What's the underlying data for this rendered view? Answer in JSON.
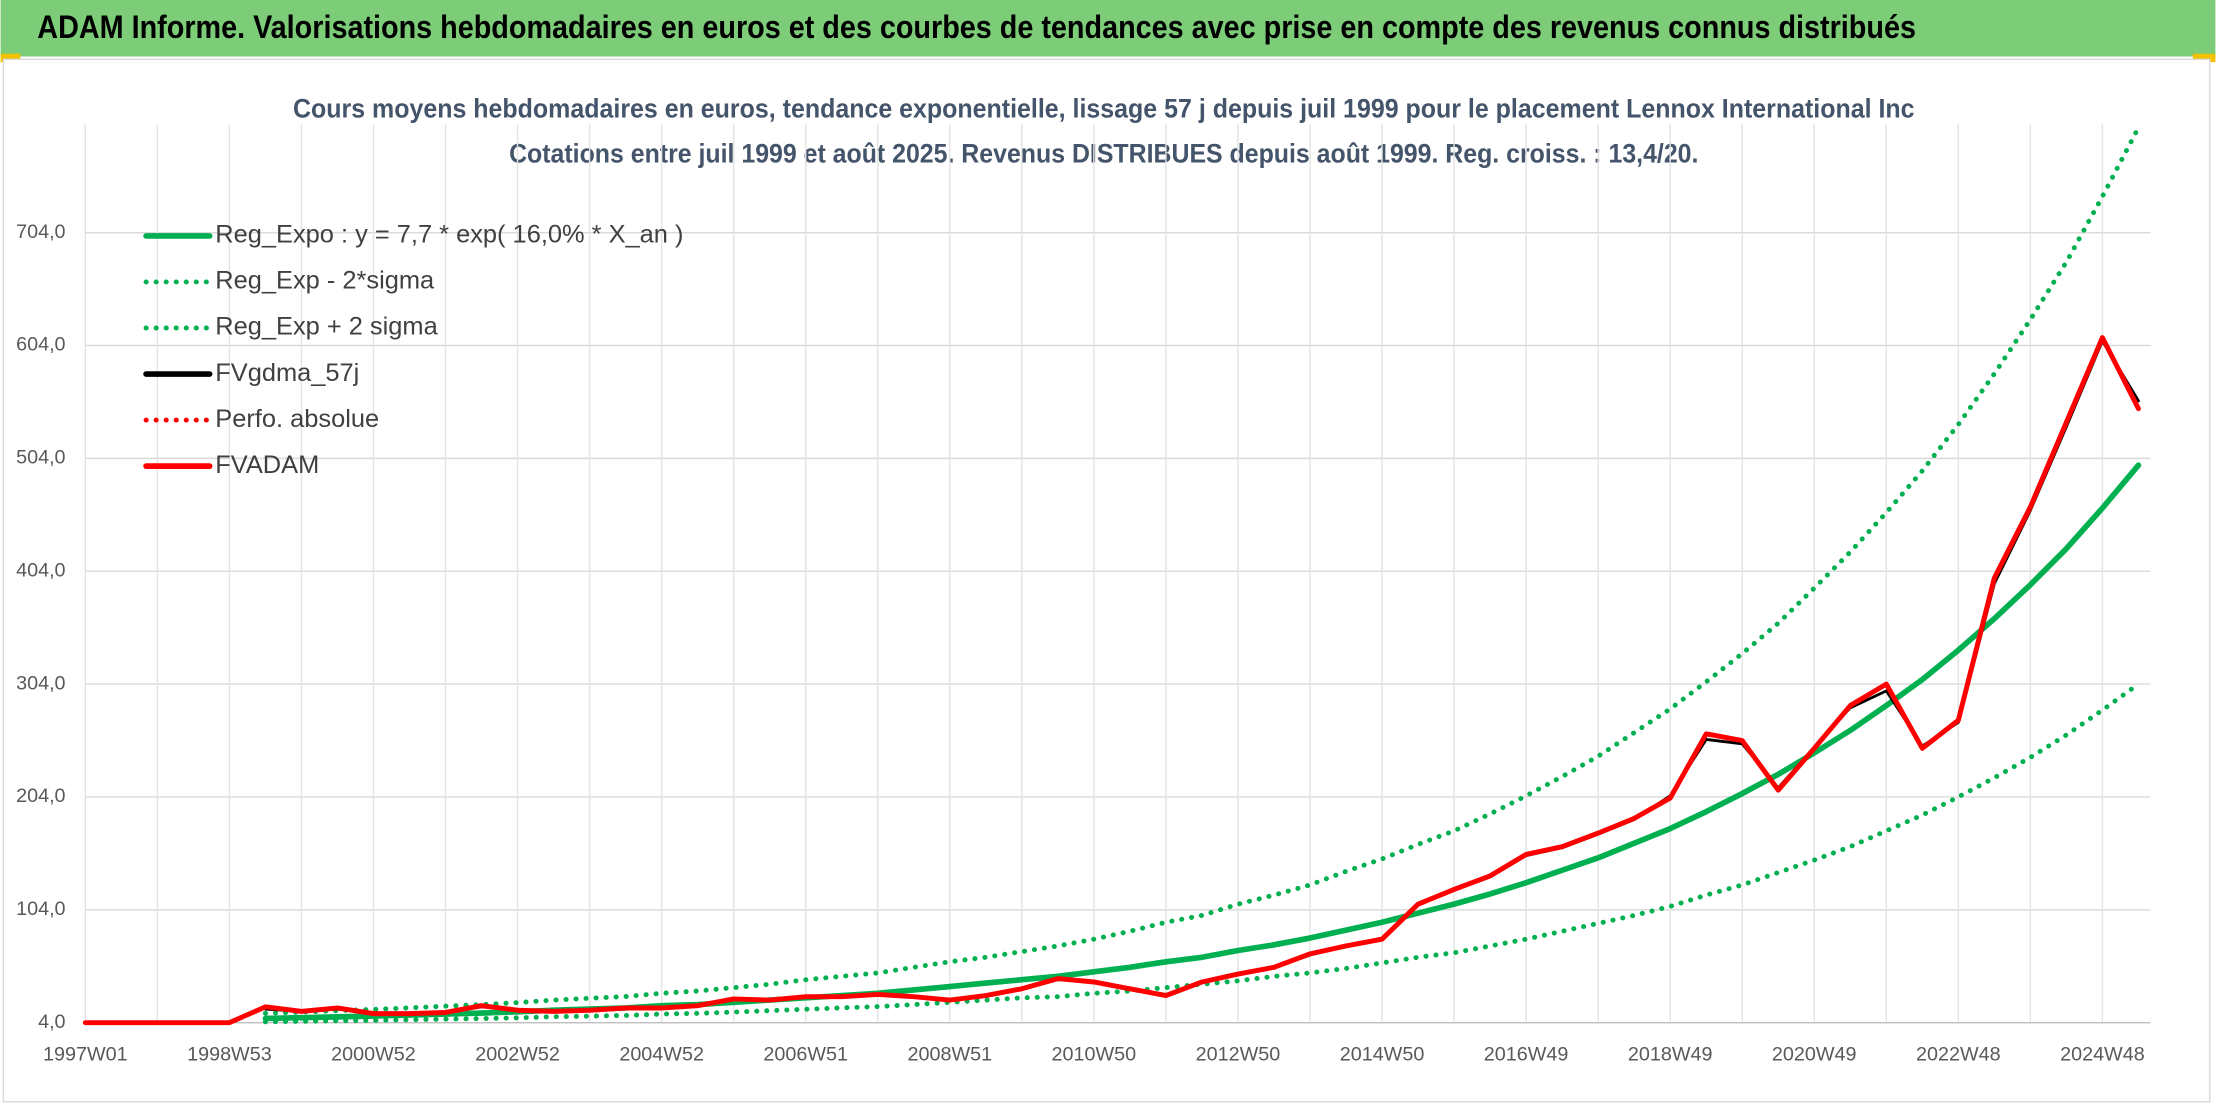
{
  "header": {
    "title": "ADAM Informe. Valorisations hebdomadaires en euros et des courbes de tendances avec prise en compte des revenus connus distribués"
  },
  "chart_data": {
    "type": "line",
    "title": "Cours moyens hebdomadaires en euros, tendance exponentielle, lissage 57 j depuis juil 1999 pour le placement Lennox International Inc",
    "subtitle": "Cotations entre juil 1999 et août 2025. Revenus DISTRIBUES depuis août 1999. Reg. croiss. : 13,4/20.",
    "categories": [
      "1997W01",
      null,
      null,
      null,
      "1998W53",
      null,
      null,
      null,
      "2000W52",
      null,
      null,
      null,
      "2002W52",
      null,
      null,
      null,
      "2004W52",
      null,
      null,
      null,
      "2006W51",
      null,
      null,
      null,
      "2008W51",
      null,
      null,
      null,
      "2010W50",
      null,
      null,
      null,
      "2012W50",
      null,
      null,
      null,
      "2014W50",
      null,
      null,
      null,
      "2016W49",
      null,
      null,
      null,
      "2018W49",
      null,
      null,
      null,
      "2020W49",
      null,
      null,
      null,
      "2022W48",
      null,
      null,
      null,
      "2024W48",
      null
    ],
    "ylim": [
      4,
      800
    ],
    "yticks": [
      {
        "value": 4,
        "label": "4,0"
      },
      {
        "value": 104,
        "label": "104,0"
      },
      {
        "value": 204,
        "label": "204,0"
      },
      {
        "value": 304,
        "label": "304,0"
      },
      {
        "value": 404,
        "label": "404,0"
      },
      {
        "value": 504,
        "label": "504,0"
      },
      {
        "value": 604,
        "label": "604,0"
      },
      {
        "value": 704,
        "label": "704,0"
      }
    ],
    "grid": true,
    "legend": "top-left",
    "series": [
      {
        "name": "Reg_Expo : y = 7,7 * exp( 16,0% *  X_an )",
        "color": "#00b050",
        "style": "solid",
        "values": [
          null,
          null,
          null,
          null,
          null,
          7.7,
          8.4,
          9.1,
          9.9,
          10.7,
          11.6,
          12.5,
          13.6,
          15,
          16,
          17,
          19,
          20,
          22,
          24,
          26,
          28,
          30,
          33,
          36,
          39,
          42,
          45,
          49,
          53,
          58,
          62,
          68,
          73,
          79,
          86,
          93,
          101,
          109,
          118,
          128,
          139,
          150,
          163,
          176,
          191,
          207,
          224,
          243,
          263,
          285,
          308,
          334,
          362,
          392,
          424,
          460,
          498
        ]
      },
      {
        "name": "Reg_Exp - 2*sigma",
        "color": "#00b050",
        "style": "dotted",
        "values": [
          null,
          null,
          null,
          null,
          null,
          4.7,
          5.1,
          5.6,
          6,
          6.5,
          7.1,
          7.6,
          8.3,
          9.2,
          9.8,
          10.4,
          11.6,
          12.2,
          13.4,
          14.6,
          15.9,
          17.1,
          18.3,
          20,
          22,
          24,
          26,
          27,
          30,
          32,
          35,
          38,
          41,
          45,
          48,
          52,
          57,
          62,
          66,
          72,
          78,
          85,
          92,
          99,
          107,
          117,
          126,
          137,
          148,
          160,
          174,
          188,
          204,
          221,
          239,
          259,
          281,
          304
        ]
      },
      {
        "name": "Reg_Exp + 2 sigma",
        "color": "#00b050",
        "style": "dotted",
        "values": [
          null,
          null,
          null,
          null,
          null,
          12.3,
          13.4,
          14.6,
          15.8,
          17.1,
          18.6,
          20,
          21.8,
          24,
          25.6,
          27.2,
          30,
          32,
          35,
          38,
          42,
          45,
          48,
          53,
          58,
          62,
          67,
          72,
          78,
          85,
          93,
          99,
          109,
          117,
          126,
          138,
          149,
          162,
          174,
          189,
          205,
          222,
          240,
          261,
          282,
          306,
          331,
          358,
          389,
          421,
          456,
          493,
          534,
          579,
          627,
          678,
          736,
          797
        ]
      },
      {
        "name": "FVgdma_57j",
        "color": "#000000",
        "style": "solid",
        "values": [
          null,
          null,
          null,
          null,
          null,
          16,
          14,
          16,
          12,
          12,
          13,
          18,
          15,
          14,
          15,
          16,
          17,
          19,
          25,
          24,
          27,
          27,
          29,
          27,
          24,
          28,
          34,
          42,
          40,
          34,
          29,
          40,
          47,
          53,
          64,
          72,
          79,
          108,
          122,
          133,
          152,
          159,
          171,
          184,
          205,
          255,
          251,
          212,
          248,
          283,
          298,
          249,
          270,
          393,
          458,
          532,
          608,
          555
        ]
      },
      {
        "name": "Perfo. absolue",
        "color": "#ff0000",
        "style": "dotted",
        "values": [
          4,
          4,
          4,
          4,
          4,
          18,
          14,
          17,
          12,
          12,
          13,
          19,
          15,
          14,
          15,
          17,
          17,
          19,
          25,
          24,
          27,
          27,
          29,
          27,
          24,
          28,
          34,
          43,
          40,
          34,
          28,
          40,
          47,
          53,
          65,
          72,
          78,
          109,
          122,
          134,
          153,
          160,
          172,
          185,
          203,
          260,
          254,
          210,
          247,
          285,
          304,
          247,
          272,
          398,
          461,
          536,
          611,
          548
        ]
      },
      {
        "name": "FVADAM",
        "color": "#ff0000",
        "style": "solid",
        "values": [
          4,
          4,
          4,
          4,
          4,
          18,
          14,
          17,
          12,
          12,
          13,
          19,
          15,
          14,
          15,
          17,
          17,
          19,
          25,
          24,
          27,
          27,
          29,
          27,
          24,
          28,
          34,
          43,
          40,
          34,
          28,
          40,
          47,
          53,
          65,
          72,
          78,
          109,
          122,
          134,
          153,
          160,
          172,
          185,
          203,
          260,
          254,
          210,
          247,
          285,
          304,
          247,
          272,
          398,
          461,
          536,
          611,
          548
        ]
      }
    ]
  }
}
